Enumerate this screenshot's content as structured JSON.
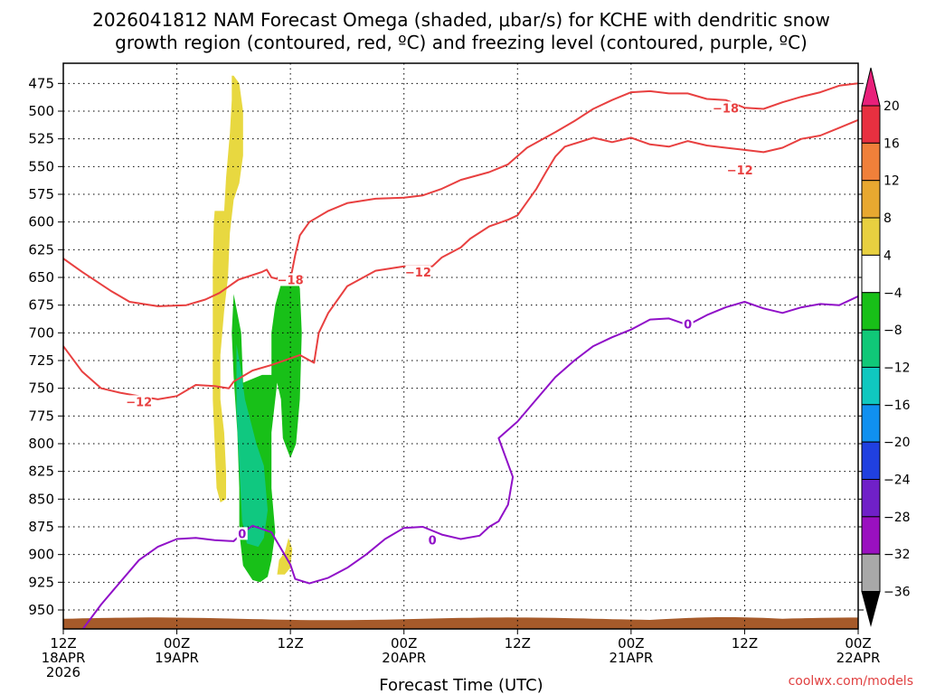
{
  "chart_data": {
    "type": "time-height contour",
    "title_line1": "2026041812 NAM Forecast Omega (shaded, μbar/s) for KCHE with dendritic snow",
    "title_line2": "growth region (contoured, red, ºC) and freezing level (contoured, purple, ºC)",
    "xlabel": "Forecast Time (UTC)",
    "credit": "coolwx.com/models",
    "x_range_hours": [
      0,
      84
    ],
    "y_range_mb": [
      470,
      970
    ],
    "y_ticks": [
      "475",
      "500",
      "525",
      "550",
      "575",
      "600",
      "625",
      "650",
      "675",
      "700",
      "725",
      "750",
      "775",
      "800",
      "825",
      "850",
      "875",
      "900",
      "925",
      "950"
    ],
    "x_ticks": [
      {
        "hour": 0,
        "lines": [
          "12Z",
          "18APR",
          "2026"
        ]
      },
      {
        "hour": 12,
        "lines": [
          "00Z",
          "19APR"
        ]
      },
      {
        "hour": 24,
        "lines": [
          "12Z"
        ]
      },
      {
        "hour": 36,
        "lines": [
          "00Z",
          "20APR"
        ]
      },
      {
        "hour": 48,
        "lines": [
          "12Z"
        ]
      },
      {
        "hour": 60,
        "lines": [
          "00Z",
          "21APR"
        ]
      },
      {
        "hour": 72,
        "lines": [
          "12Z"
        ]
      },
      {
        "hour": 84,
        "lines": [
          "00Z",
          "22APR"
        ]
      }
    ],
    "colorbar": {
      "labels": [
        "20",
        "16",
        "12",
        "8",
        "4",
        "-4",
        "-8",
        "-12",
        "-16",
        "-20",
        "-24",
        "-28",
        "-32",
        "-36"
      ],
      "colors": [
        "#e83040",
        "#f0803a",
        "#e8a830",
        "#e8d040",
        "#ffffff",
        "#18c018",
        "#10c878",
        "#10c8c0",
        "#1090f0",
        "#2040e0",
        "#7020c8",
        "#9a10c0",
        "#a8a8a8"
      ],
      "top_arrow": "#e8207a",
      "bottom_arrow": "#000000"
    },
    "isotherm_labels": [
      {
        "text": "-18",
        "color": "#e84040",
        "hour": 24.0,
        "mb": 652
      },
      {
        "text": "-12",
        "color": "#e84040",
        "hour": 8.0,
        "mb": 762
      },
      {
        "text": "-12",
        "color": "#e84040",
        "hour": 37.5,
        "mb": 645
      },
      {
        "text": "-18",
        "color": "#e84040",
        "hour": 70.0,
        "mb": 497
      },
      {
        "text": "-12",
        "color": "#e84040",
        "hour": 71.5,
        "mb": 553
      },
      {
        "text": "0",
        "color": "#9010c8",
        "hour": 18.9,
        "mb": 881
      },
      {
        "text": "0",
        "color": "#9010c8",
        "hour": 39.0,
        "mb": 887
      },
      {
        "text": "0",
        "color": "#9010c8",
        "hour": 66.0,
        "mb": 692
      }
    ],
    "series": [
      {
        "name": "-18C isotherm (early)",
        "color": "#e84040",
        "points": [
          [
            0,
            633
          ],
          [
            2,
            645
          ],
          [
            5,
            662
          ],
          [
            7,
            672
          ],
          [
            10,
            676
          ],
          [
            13,
            675
          ],
          [
            15,
            670
          ],
          [
            16.5,
            664
          ],
          [
            18.5,
            652
          ],
          [
            21,
            645
          ],
          [
            21.5,
            643
          ],
          [
            22,
            650
          ],
          [
            23,
            652
          ],
          [
            24,
            652
          ],
          [
            24.5,
            630
          ],
          [
            25,
            612
          ],
          [
            26,
            600
          ],
          [
            28,
            590
          ],
          [
            30,
            583
          ],
          [
            33,
            579
          ],
          [
            36,
            578
          ],
          [
            38,
            576
          ],
          [
            40,
            570
          ],
          [
            42,
            562
          ],
          [
            45,
            555
          ],
          [
            47,
            548
          ],
          [
            49,
            533
          ],
          [
            52,
            519
          ],
          [
            54,
            509
          ],
          [
            56,
            498
          ],
          [
            58,
            490
          ],
          [
            60,
            483
          ],
          [
            62,
            482
          ],
          [
            64,
            484
          ],
          [
            66,
            484
          ],
          [
            68,
            489
          ],
          [
            70,
            490
          ],
          [
            72,
            497
          ],
          [
            74,
            498
          ],
          [
            76,
            492
          ],
          [
            78,
            487
          ],
          [
            80,
            483
          ],
          [
            82,
            477
          ],
          [
            84,
            475
          ]
        ]
      },
      {
        "name": "-12C isotherm",
        "color": "#e84040",
        "points": [
          [
            0,
            712
          ],
          [
            2,
            735
          ],
          [
            4,
            750
          ],
          [
            6,
            754
          ],
          [
            8,
            757
          ],
          [
            10,
            760
          ],
          [
            12,
            757
          ],
          [
            14,
            747
          ],
          [
            16,
            748
          ],
          [
            17.5,
            750
          ],
          [
            18,
            744
          ],
          [
            20,
            734
          ],
          [
            22,
            729
          ],
          [
            25,
            720
          ],
          [
            26.5,
            727
          ],
          [
            27,
            700
          ],
          [
            28,
            682
          ],
          [
            30,
            658
          ],
          [
            33,
            644
          ],
          [
            36,
            640
          ],
          [
            39,
            640
          ],
          [
            40,
            632
          ],
          [
            42,
            623
          ],
          [
            43,
            615
          ],
          [
            45,
            604
          ],
          [
            47,
            598
          ],
          [
            48,
            594
          ],
          [
            49,
            582
          ],
          [
            50,
            570
          ],
          [
            51,
            555
          ],
          [
            52,
            541
          ],
          [
            53,
            532
          ],
          [
            56,
            524
          ],
          [
            58,
            528
          ],
          [
            60,
            524
          ],
          [
            62,
            530
          ],
          [
            64,
            532
          ],
          [
            66,
            527
          ],
          [
            68,
            531
          ],
          [
            70,
            533
          ],
          [
            72,
            535
          ],
          [
            74,
            537
          ],
          [
            76,
            533
          ],
          [
            78,
            525
          ],
          [
            80,
            522
          ],
          [
            82,
            515
          ],
          [
            84,
            508
          ]
        ]
      },
      {
        "name": "0C isotherm",
        "color": "#9010c8",
        "points": [
          [
            2,
            968
          ],
          [
            4,
            945
          ],
          [
            6,
            925
          ],
          [
            8,
            905
          ],
          [
            10,
            893
          ],
          [
            12,
            886
          ],
          [
            14,
            885
          ],
          [
            16,
            887
          ],
          [
            18,
            888
          ],
          [
            19,
            880
          ],
          [
            20,
            874
          ],
          [
            22,
            880
          ],
          [
            24,
            909
          ],
          [
            24.5,
            922
          ],
          [
            26,
            926
          ],
          [
            28,
            921
          ],
          [
            30,
            912
          ],
          [
            32,
            900
          ],
          [
            34,
            886
          ],
          [
            36,
            876
          ],
          [
            38,
            875
          ],
          [
            40,
            882
          ],
          [
            42,
            886
          ],
          [
            44,
            883
          ],
          [
            45,
            875
          ],
          [
            46,
            870
          ],
          [
            47,
            855
          ],
          [
            47.5,
            830
          ],
          [
            46,
            795
          ],
          [
            48,
            780
          ],
          [
            50,
            760
          ],
          [
            52,
            740
          ],
          [
            54,
            725
          ],
          [
            56,
            712
          ],
          [
            58,
            704
          ],
          [
            60,
            697
          ],
          [
            62,
            688
          ],
          [
            64,
            687
          ],
          [
            66,
            693
          ],
          [
            68,
            684
          ],
          [
            70,
            677
          ],
          [
            72,
            672
          ],
          [
            74,
            678
          ],
          [
            76,
            682
          ],
          [
            78,
            677
          ],
          [
            80,
            674
          ],
          [
            82,
            675
          ],
          [
            84,
            667
          ]
        ]
      }
    ],
    "omega_shading": [
      {
        "name": "yellow plume 4-8",
        "color": "#e8d840",
        "points": [
          [
            18.0,
            468
          ],
          [
            18.6,
            475
          ],
          [
            19.0,
            500
          ],
          [
            19.0,
            540
          ],
          [
            18.6,
            565
          ],
          [
            18.0,
            580
          ],
          [
            17.6,
            610
          ],
          [
            17.4,
            650
          ],
          [
            17.0,
            680
          ],
          [
            16.6,
            720
          ],
          [
            16.6,
            760
          ],
          [
            17.0,
            790
          ],
          [
            17.2,
            825
          ],
          [
            17.2,
            850
          ],
          [
            16.6,
            853
          ],
          [
            16.2,
            840
          ],
          [
            16.0,
            800
          ],
          [
            15.8,
            760
          ],
          [
            15.8,
            700
          ],
          [
            15.8,
            640
          ],
          [
            15.9,
            600
          ],
          [
            16.0,
            590
          ],
          [
            17.0,
            590
          ],
          [
            17.2,
            560
          ],
          [
            17.6,
            520
          ],
          [
            17.8,
            490
          ],
          [
            17.8,
            468
          ]
        ]
      },
      {
        "name": "yellow small 4-8",
        "color": "#e8d840",
        "points": [
          [
            23.4,
            898
          ],
          [
            23.8,
            885
          ],
          [
            24.2,
            895
          ],
          [
            24.0,
            912
          ],
          [
            23.4,
            918
          ],
          [
            22.6,
            918
          ],
          [
            22.8,
            905
          ]
        ]
      },
      {
        "name": "green -4 to -8",
        "color": "#18c018",
        "points": [
          [
            18.0,
            665
          ],
          [
            18.8,
            700
          ],
          [
            19.0,
            745
          ],
          [
            21.0,
            738
          ],
          [
            22.0,
            738
          ],
          [
            22.0,
            700
          ],
          [
            22.4,
            675
          ],
          [
            23.2,
            650
          ],
          [
            24.6,
            647
          ],
          [
            25.0,
            660
          ],
          [
            25.2,
            700
          ],
          [
            25.0,
            760
          ],
          [
            24.6,
            800
          ],
          [
            24.0,
            813
          ],
          [
            23.2,
            795
          ],
          [
            23.0,
            760
          ],
          [
            22.6,
            745
          ],
          [
            22.0,
            790
          ],
          [
            22.0,
            840
          ],
          [
            22.4,
            880
          ],
          [
            22.0,
            905
          ],
          [
            21.6,
            920
          ],
          [
            20.8,
            925
          ],
          [
            20.0,
            923
          ],
          [
            19.0,
            910
          ],
          [
            18.6,
            880
          ],
          [
            18.6,
            840
          ],
          [
            18.4,
            790
          ],
          [
            18.0,
            740
          ],
          [
            17.8,
            700
          ]
        ]
      },
      {
        "name": "teal -8 to -12",
        "color": "#10c880",
        "points": [
          [
            18.3,
            710
          ],
          [
            18.8,
            735
          ],
          [
            19.2,
            760
          ],
          [
            20.4,
            800
          ],
          [
            21.2,
            820
          ],
          [
            21.6,
            860
          ],
          [
            21.2,
            885
          ],
          [
            20.6,
            893
          ],
          [
            19.4,
            890
          ],
          [
            18.9,
            870
          ],
          [
            18.6,
            820
          ],
          [
            18.3,
            770
          ]
        ]
      }
    ],
    "terrain_color": "#a65a2a"
  }
}
